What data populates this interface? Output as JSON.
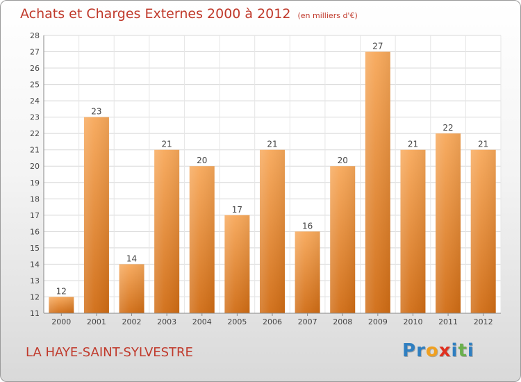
{
  "header": {
    "title": "Achats et Charges Externes 2000 à 2012",
    "unit": "(en milliers d'€)"
  },
  "footer": {
    "commune": "LA HAYE-SAINT-SYLVESTRE",
    "logo_letters": [
      {
        "ch": "P",
        "color": "#2f7fc1"
      },
      {
        "ch": "r",
        "color": "#2f7fc1"
      },
      {
        "ch": "o",
        "color": "#f0a020"
      },
      {
        "ch": "x",
        "color": "#e03020"
      },
      {
        "ch": "i",
        "color": "#2f7fc1"
      },
      {
        "ch": "t",
        "color": "#6ab04c"
      },
      {
        "ch": "i",
        "color": "#2f7fc1"
      }
    ]
  },
  "chart_data": {
    "type": "bar",
    "categories": [
      "2000",
      "2001",
      "2002",
      "2003",
      "2004",
      "2005",
      "2006",
      "2007",
      "2008",
      "2009",
      "2010",
      "2011",
      "2012"
    ],
    "values": [
      12,
      23,
      14,
      21,
      20,
      17,
      21,
      16,
      20,
      27,
      21,
      22,
      21
    ],
    "data_labels": [
      "12",
      "23",
      "14",
      "21",
      "20",
      "17",
      "21",
      "16",
      "20",
      "27",
      "21",
      "22",
      "21"
    ],
    "ylim": [
      11,
      28
    ],
    "yticks": [
      11,
      12,
      13,
      14,
      15,
      16,
      17,
      18,
      19,
      20,
      21,
      22,
      23,
      24,
      25,
      26,
      27,
      28
    ],
    "grid": true,
    "bar_color": "#f0963c",
    "title": "Achats et Charges Externes 2000 à 2012",
    "xlabel": "",
    "ylabel": ""
  }
}
